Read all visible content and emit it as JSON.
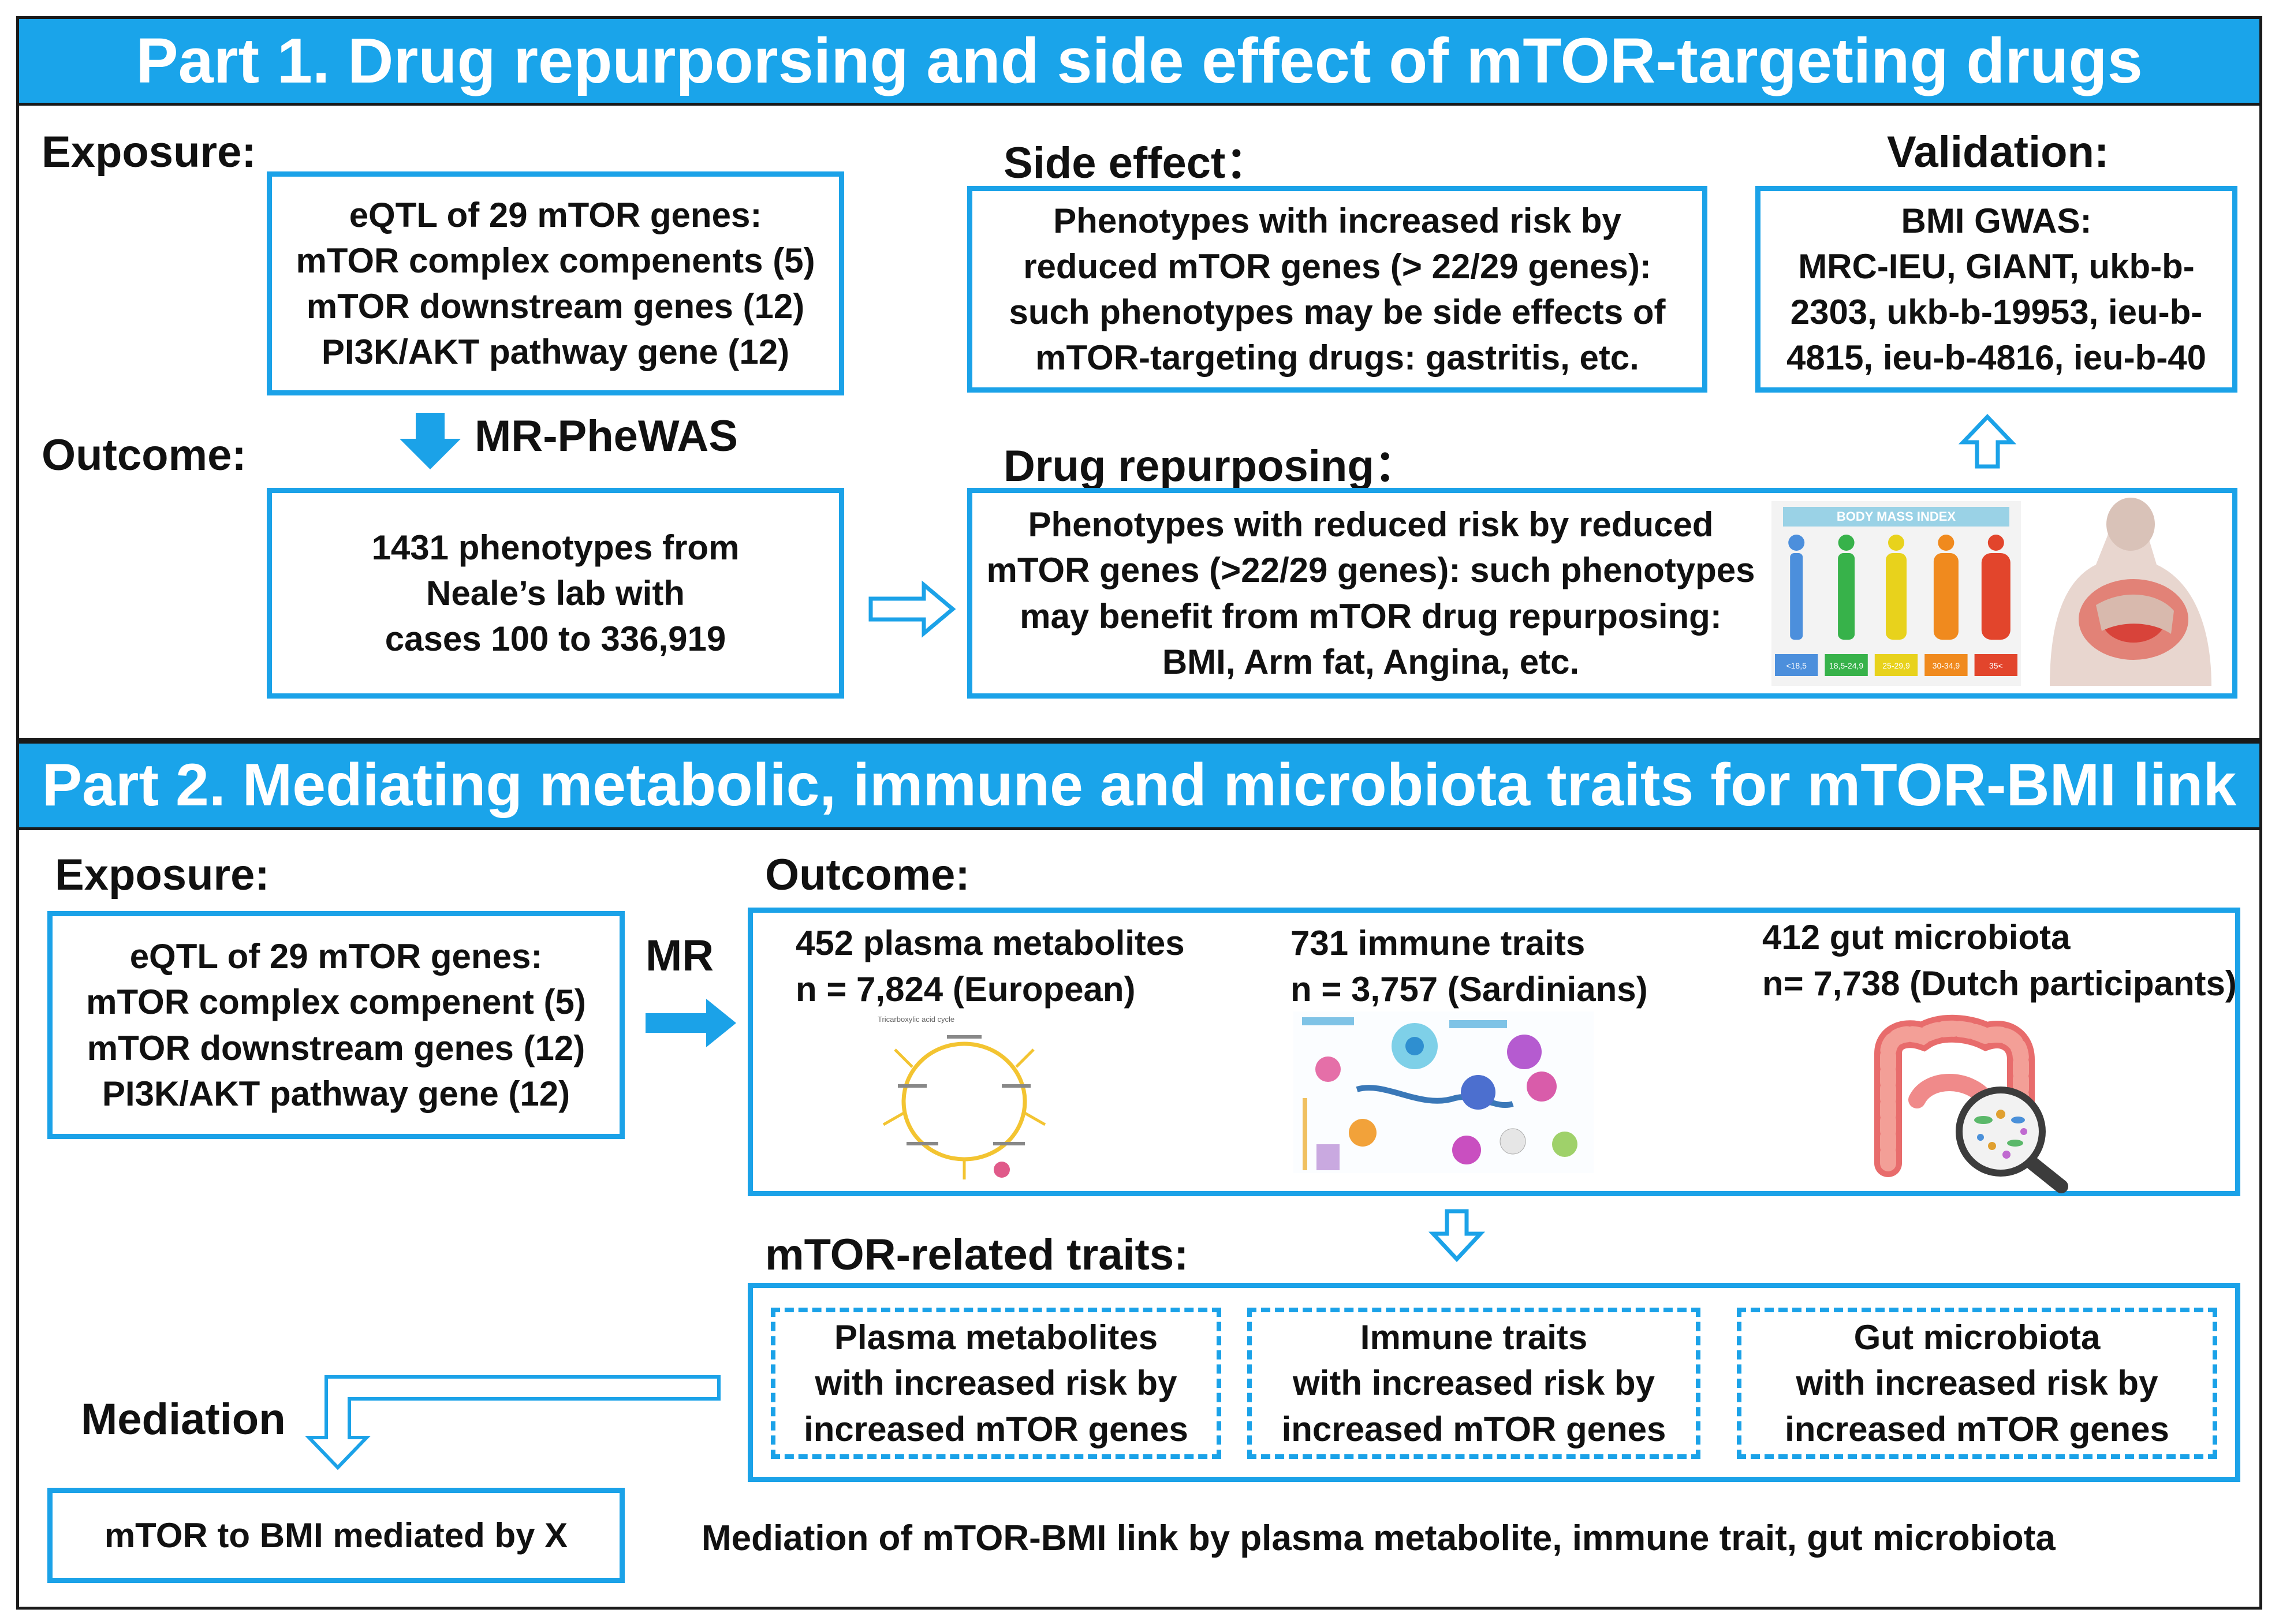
{
  "part1": {
    "title": "Part 1. Drug repurporsing and side effect of mTOR-targeting drugs",
    "exposure_label": "Exposure:",
    "exposure_lines": [
      "eQTL of 29 mTOR genes:",
      "mTOR complex compenents (5)",
      "mTOR downstream genes (12)",
      "PI3K/AKT pathway gene (12)"
    ],
    "method_label": "MR-PheWAS",
    "outcome_label": "Outcome:",
    "outcome_lines": [
      "1431 phenotypes from",
      "Neale’s lab with",
      "cases 100 to 336,919"
    ],
    "side_effect_label": "Side effect：",
    "side_effect_lines": [
      "Phenotypes with increased risk by",
      "reduced mTOR genes (> 22/29 genes):",
      "such phenotypes may be side effects of",
      "mTOR-targeting drugs: gastritis, etc."
    ],
    "validation_label": "Validation:",
    "validation_lines": [
      "BMI GWAS:",
      "MRC-IEU, GIANT, ukb-b-",
      "2303, ukb-b-19953, ieu-b-",
      "4815, ieu-b-4816, ieu-b-40"
    ],
    "repurposing_label": "Drug repurposing：",
    "repurposing_lines": [
      "Phenotypes with reduced risk by reduced",
      "mTOR genes  (>22/29 genes): such phenotypes",
      "may benefit from mTOR drug repurposing:",
      "BMI, Arm fat, Angina, etc."
    ],
    "bmi_chart": {
      "title": "BODY MASS INDEX",
      "categories": [
        {
          "label": "<18,5",
          "color": "#4c8fdc"
        },
        {
          "label": "18,5-24,9",
          "color": "#37b24a"
        },
        {
          "label": "25-29,9",
          "color": "#e8d21c"
        },
        {
          "label": "30-34,9",
          "color": "#f08a1e"
        },
        {
          "label": "35<",
          "color": "#e2452c"
        }
      ]
    }
  },
  "part2": {
    "title": "Part 2. Mediating metabolic, immune and microbiota traits for mTOR-BMI link",
    "exposure_label": "Exposure:",
    "exposure_lines": [
      "eQTL of 29 mTOR genes:",
      "mTOR complex compenent (5)",
      "mTOR downstream genes (12)",
      "PI3K/AKT pathway gene (12)"
    ],
    "method_label": "MR",
    "outcome_label": "Outcome:",
    "metabolites": {
      "title": "452 plasma metabolites",
      "n": "n = 7,824 (European)",
      "diagram_title": "Tricarboxylic acid cycle"
    },
    "immune": {
      "title": "731 immune traits",
      "n": "n = 3,757 (Sardinians)"
    },
    "microbiota": {
      "title": "412 gut microbiota",
      "n": "n= 7,738 (Dutch participants)"
    },
    "traits_label": "mTOR-related traits:",
    "trait_boxes": [
      [
        "Plasma metabolites",
        "with increased risk by",
        "increased mTOR genes"
      ],
      [
        "Immune traits",
        "with increased risk by",
        "increased mTOR genes"
      ],
      [
        "Gut microbiota",
        "with increased risk by",
        "increased mTOR genes"
      ]
    ],
    "mediation_label": "Mediation",
    "mediation_box": "mTOR to BMI mediated by X",
    "mediation_text": "Mediation of mTOR-BMI link  by  plasma metabolite,  immune trait, gut microbiota"
  },
  "colors": {
    "accent": "#1ba2e8",
    "banner": "#1aa4ea"
  }
}
